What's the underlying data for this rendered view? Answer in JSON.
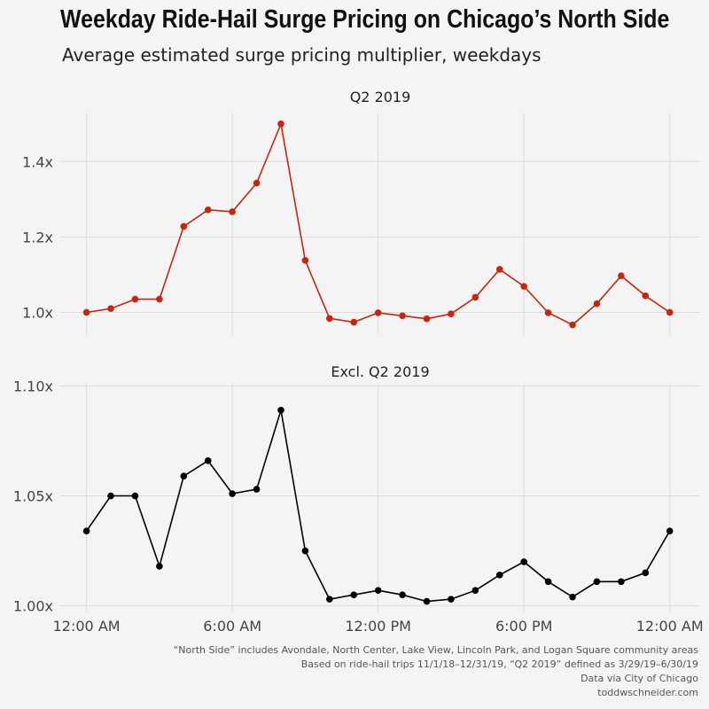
{
  "title": "Weekday Ride-Hail Surge Pricing on Chicago’s North Side",
  "subtitle": "Average estimated surge pricing multiplier, weekdays",
  "captions": [
    "“North Side” includes Avondale, North Center, Lake View, Lincoln Park, and Logan Square community areas",
    "Based on ride-hail trips 11/1/18–12/31/19, “Q2 2019” defined as 3/29/19–6/30/19",
    "Data via City of Chicago",
    "toddwschneider.com"
  ],
  "colors": {
    "q2": "#c7250f",
    "excl": "#000000",
    "grid": "#dcdcdc",
    "panel": "#f4f4f4"
  },
  "chart_data": [
    {
      "type": "line",
      "title": "Q2 2019",
      "x": [
        0,
        1,
        2,
        3,
        4,
        5,
        6,
        7,
        8,
        9,
        10,
        11,
        12,
        13,
        14,
        15,
        16,
        17,
        18,
        19,
        20,
        21,
        22,
        23,
        24
      ],
      "y": [
        1.0,
        1.01,
        1.035,
        1.035,
        1.228,
        1.272,
        1.267,
        1.343,
        1.5,
        1.138,
        0.984,
        0.974,
        0.999,
        0.991,
        0.983,
        0.996,
        1.04,
        1.114,
        1.069,
        0.999,
        0.967,
        1.023,
        1.097,
        1.044,
        1.0
      ],
      "ylim": [
        0.94,
        1.53
      ],
      "yticks": [
        1.0,
        1.2,
        1.4
      ],
      "ytick_labels": [
        "1.0x",
        "1.2x",
        "1.4x"
      ]
    },
    {
      "type": "line",
      "title": "Excl. Q2 2019",
      "x": [
        0,
        1,
        2,
        3,
        4,
        5,
        6,
        7,
        8,
        9,
        10,
        11,
        12,
        13,
        14,
        15,
        16,
        17,
        18,
        19,
        20,
        21,
        22,
        23,
        24
      ],
      "y": [
        1.034,
        1.05,
        1.05,
        1.018,
        1.059,
        1.066,
        1.051,
        1.053,
        1.089,
        1.025,
        1.003,
        1.005,
        1.007,
        1.005,
        1.002,
        1.003,
        1.007,
        1.014,
        1.02,
        1.011,
        1.004,
        1.011,
        1.011,
        1.015,
        1.034
      ],
      "ylim": [
        0.997,
        1.101
      ],
      "yticks": [
        1.0,
        1.05,
        1.1
      ],
      "ytick_labels": [
        "1.00x",
        "1.05x",
        "1.10x"
      ]
    }
  ],
  "xaxis": {
    "ticks": [
      0,
      6,
      12,
      18,
      24
    ],
    "tick_labels": [
      "12:00 AM",
      "6:00 AM",
      "12:00 PM",
      "6:00 PM",
      "12:00 AM"
    ]
  }
}
